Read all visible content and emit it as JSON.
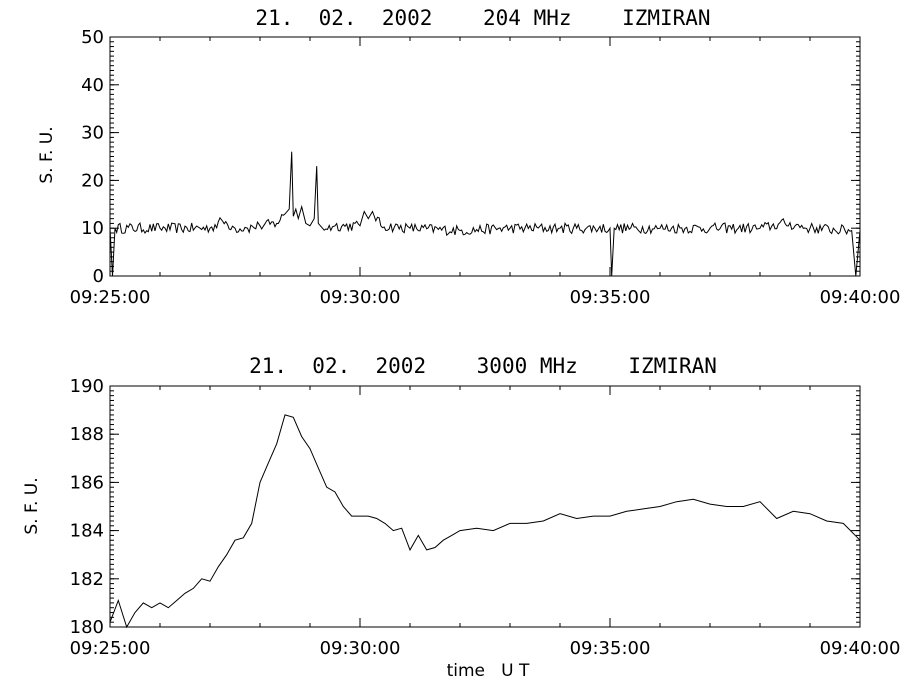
{
  "chart_data": [
    {
      "type": "line",
      "title": "21.  02.  2002    204 MHz    IZMIRAN",
      "ylabel": "S. F. U.",
      "xlabel": "",
      "xlim": [
        "09:25:00",
        "09:40:00"
      ],
      "ylim": [
        0,
        50
      ],
      "x_tick_labels": [
        "09:25:00",
        "09:30:00",
        "09:35:00",
        "09:40:00"
      ],
      "y_tick_labels": [
        "0",
        "10",
        "20",
        "30",
        "40",
        "50"
      ],
      "baseline_level": 10,
      "series": [
        {
          "x": [
            "09:25:00",
            "09:25:03",
            "09:25:06",
            "09:26:00",
            "09:27:00",
            "09:27:15",
            "09:27:30",
            "09:27:45",
            "09:28:00",
            "09:28:20",
            "09:28:30",
            "09:28:35",
            "09:28:38",
            "09:28:40",
            "09:28:43",
            "09:28:46",
            "09:28:50",
            "09:28:55",
            "09:29:00",
            "09:29:05",
            "09:29:08",
            "09:29:10",
            "09:29:15",
            "09:29:30",
            "09:30:00",
            "09:30:05",
            "09:30:10",
            "09:30:15",
            "09:30:25",
            "09:31:00",
            "09:32:00",
            "09:33:00",
            "09:34:00",
            "09:35:00",
            "09:35:02",
            "09:35:05",
            "09:36:00",
            "09:37:00",
            "09:38:00",
            "09:38:30",
            "09:39:00",
            "09:39:50",
            "09:39:55",
            "09:40:00"
          ],
          "values": [
            10,
            0,
            10,
            10,
            10,
            11.5,
            10,
            10,
            10.5,
            11,
            13,
            14,
            26,
            12.5,
            14,
            12,
            14.5,
            11,
            10.5,
            12,
            23,
            11,
            10,
            10.5,
            10.5,
            13.5,
            12,
            13.5,
            10.5,
            10,
            9.5,
            10,
            10,
            10,
            0,
            10,
            10,
            10,
            10,
            11,
            10,
            9.5,
            0,
            9.5
          ]
        }
      ]
    },
    {
      "type": "line",
      "title": "21.  02.  2002    3000 MHz    IZMIRAN",
      "ylabel": "S. F. U.",
      "xlabel": "time   U T",
      "xlim": [
        "09:25:00",
        "09:40:00"
      ],
      "ylim": [
        180,
        190
      ],
      "x_tick_labels": [
        "09:25:00",
        "09:30:00",
        "09:35:00",
        "09:40:00"
      ],
      "y_tick_labels": [
        "180",
        "182",
        "184",
        "186",
        "188",
        "190"
      ],
      "series": [
        {
          "x": [
            "09:25:00",
            "09:25:10",
            "09:25:20",
            "09:25:30",
            "09:25:40",
            "09:25:50",
            "09:26:00",
            "09:26:10",
            "09:26:20",
            "09:26:30",
            "09:26:40",
            "09:26:50",
            "09:27:00",
            "09:27:10",
            "09:27:20",
            "09:27:30",
            "09:27:40",
            "09:27:50",
            "09:28:00",
            "09:28:10",
            "09:28:20",
            "09:28:30",
            "09:28:40",
            "09:28:50",
            "09:29:00",
            "09:29:10",
            "09:29:20",
            "09:29:30",
            "09:29:40",
            "09:29:50",
            "09:30:00",
            "09:30:10",
            "09:30:20",
            "09:30:30",
            "09:30:40",
            "09:30:50",
            "09:31:00",
            "09:31:10",
            "09:31:20",
            "09:31:30",
            "09:31:40",
            "09:31:50",
            "09:32:00",
            "09:32:20",
            "09:32:40",
            "09:33:00",
            "09:33:20",
            "09:33:40",
            "09:34:00",
            "09:34:20",
            "09:34:40",
            "09:35:00",
            "09:35:20",
            "09:35:40",
            "09:36:00",
            "09:36:20",
            "09:36:40",
            "09:37:00",
            "09:37:20",
            "09:37:40",
            "09:38:00",
            "09:38:20",
            "09:38:40",
            "09:39:00",
            "09:39:20",
            "09:39:40",
            "09:40:00"
          ],
          "values": [
            180.2,
            181.1,
            180.0,
            180.6,
            181.0,
            180.8,
            181.0,
            180.8,
            181.1,
            181.4,
            181.6,
            182.0,
            181.9,
            182.5,
            183.0,
            183.6,
            183.7,
            184.3,
            186.0,
            186.8,
            187.6,
            188.8,
            188.7,
            187.9,
            187.4,
            186.6,
            185.8,
            185.6,
            185.0,
            184.6,
            184.6,
            184.6,
            184.5,
            184.3,
            184.0,
            184.1,
            183.2,
            183.8,
            183.2,
            183.3,
            183.6,
            183.8,
            184.0,
            184.1,
            184.0,
            184.3,
            184.3,
            184.4,
            184.7,
            184.5,
            184.6,
            184.6,
            184.8,
            184.9,
            185.0,
            185.2,
            185.3,
            185.1,
            185.0,
            185.0,
            185.2,
            184.5,
            184.8,
            184.7,
            184.4,
            184.3,
            183.6
          ]
        }
      ]
    }
  ]
}
